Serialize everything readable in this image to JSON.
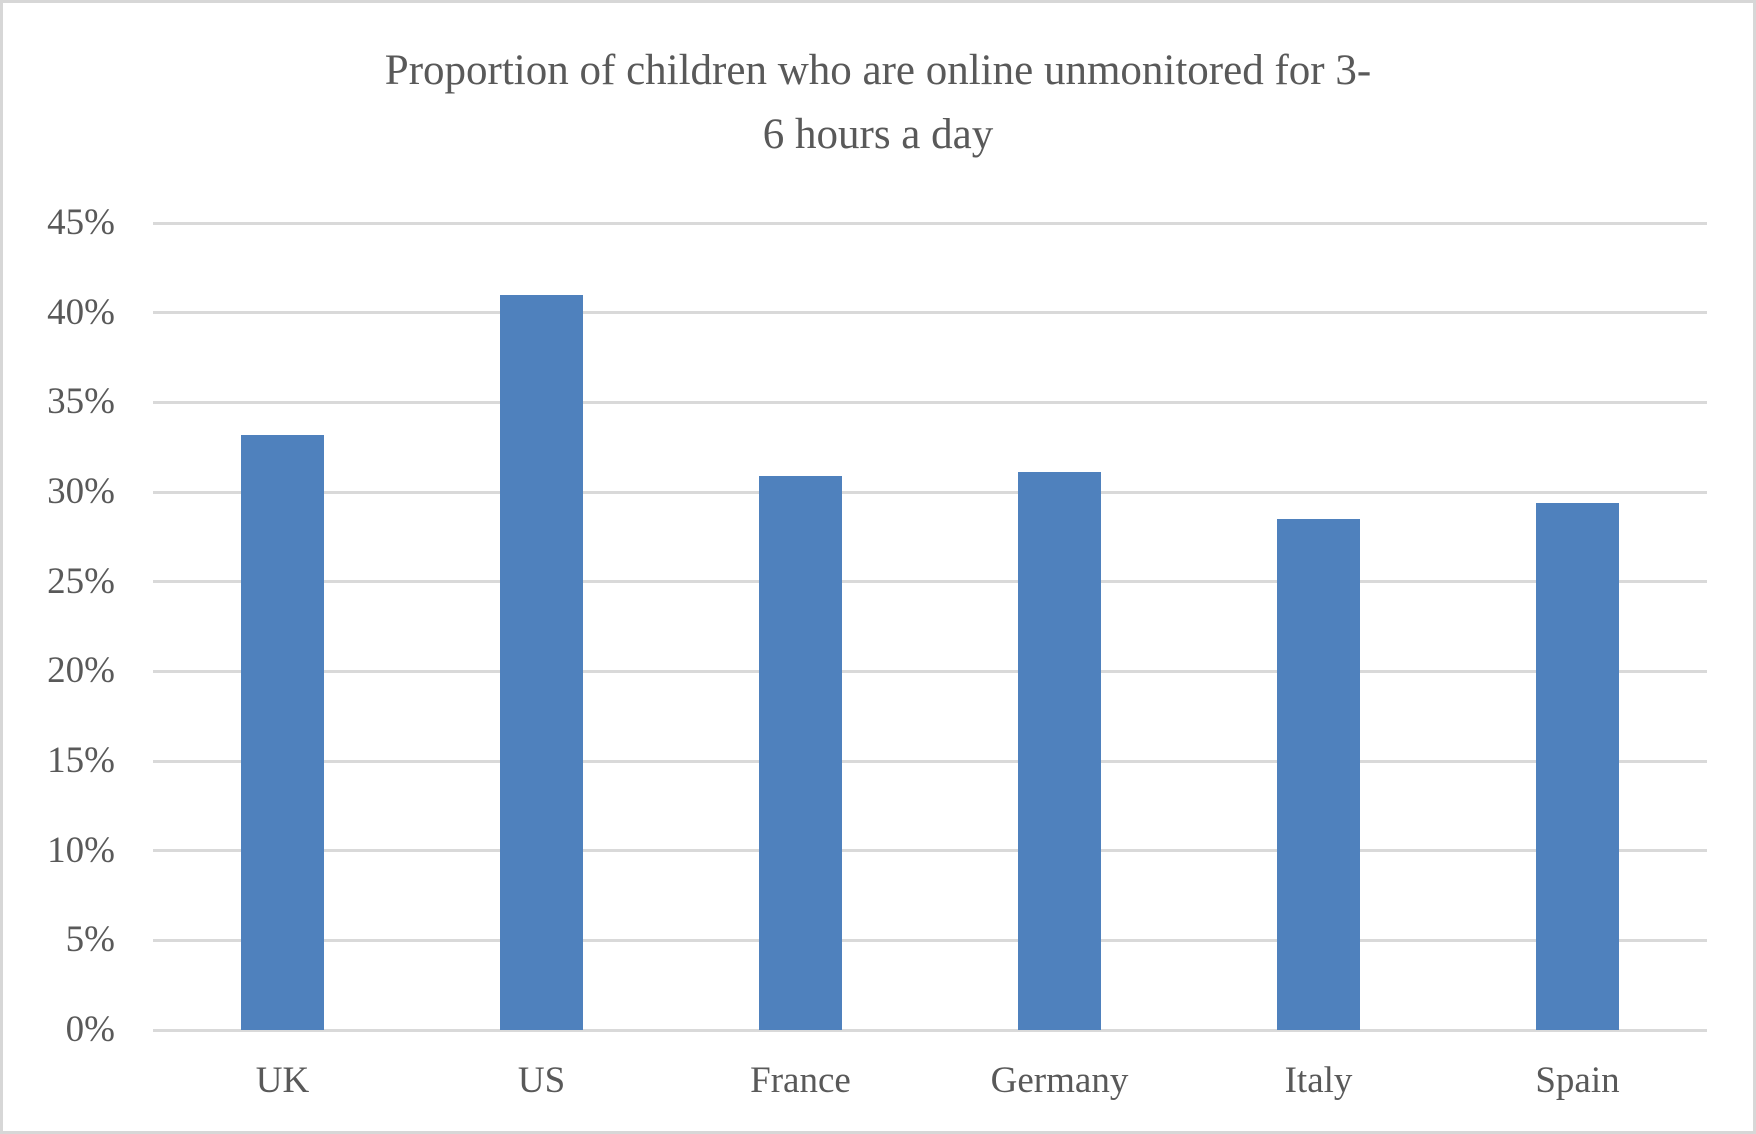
{
  "chart_data": {
    "type": "bar",
    "title": "Proportion of children who are online unmonitored for 3-6 hours a day",
    "title_lines": [
      "Proportion of children who are online unmonitored for 3-",
      "6 hours a day"
    ],
    "categories": [
      "UK",
      "US",
      "France",
      "Germany",
      "Italy",
      "Spain"
    ],
    "values": [
      33.2,
      41,
      30.9,
      31.1,
      28.5,
      29.4
    ],
    "series_name": "Proportion of children online unmonitored 3-6 hours a day",
    "unit": "%",
    "xlabel": "",
    "ylabel": "",
    "ylim": [
      0,
      45
    ],
    "ytick_step": 5,
    "ytick_labels": [
      "0%",
      "5%",
      "10%",
      "15%",
      "20%",
      "25%",
      "30%",
      "35%",
      "40%",
      "45%"
    ],
    "grid": true,
    "legend": "none",
    "colors": {
      "bar": "#4f81bd",
      "gridline": "#d9d9d9",
      "text": "#595959",
      "frame_border": "#d7d7d7",
      "background": "#ffffff"
    }
  }
}
